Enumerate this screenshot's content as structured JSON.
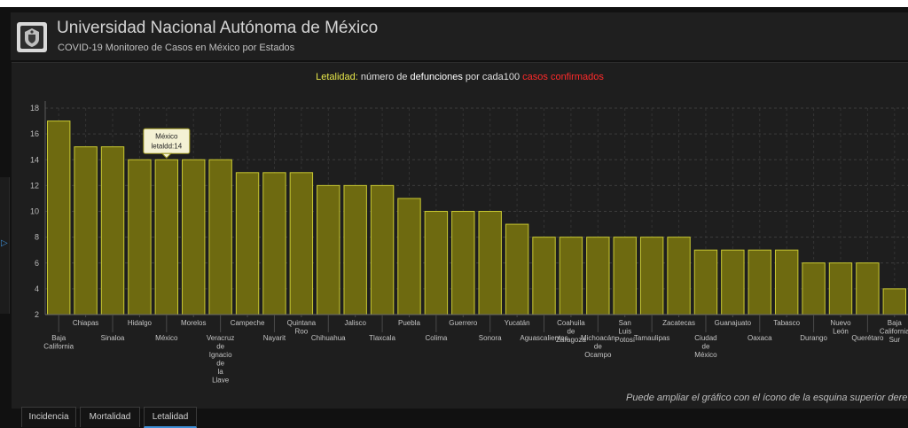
{
  "header": {
    "title": "Universidad Nacional Autónoma de México",
    "subtitle": "COVID-19 Monitoreo de Casos en México por Estados"
  },
  "chart_title": {
    "part1": "Letalidad:",
    "part2": " número de ",
    "part3": "defunciones",
    "part4": " por cada100 ",
    "part5": "casos confirmados"
  },
  "hint": "Puede ampliar el gráfico con el ícono de la esquina superior dere",
  "tooltip": {
    "line1": "México",
    "line2": "letaldd:14"
  },
  "tabs": [
    {
      "label": "Incidencia",
      "active": false
    },
    {
      "label": "Mortalidad",
      "active": false
    },
    {
      "label": "Letalidad",
      "active": true
    }
  ],
  "colors": {
    "bar_fill": "#6e6a10",
    "bar_stroke": "#c8c832",
    "accent": "#3d8fd6"
  },
  "chart_data": {
    "type": "bar",
    "ylim": [
      2,
      18
    ],
    "yticks": [
      2,
      4,
      6,
      8,
      10,
      12,
      14,
      16,
      18
    ],
    "grid": true,
    "categories": [
      "Baja California",
      "Chiapas",
      "Sinaloa",
      "Hidalgo",
      "México",
      "Morelos",
      "Veracruz de Ignacio de la Llave",
      "Campeche",
      "Nayarit",
      "Quintana Roo",
      "Chihuahua",
      "Jalisco",
      "Tlaxcala",
      "Puebla",
      "Colima",
      "Guerrero",
      "Sonora",
      "Yucatán",
      "Aguascalientes",
      "Coahuila de Zaragoza",
      "Michoacán de Ocampo",
      "San Luis Potosí",
      "Tamaulipas",
      "Zacatecas",
      "Ciudad de México",
      "Guanajuato",
      "Oaxaca",
      "Tabasco",
      "Durango",
      "Nuevo León",
      "Querétaro",
      "Baja California Sur"
    ],
    "tick_labels": [
      [
        "Baja",
        "California"
      ],
      [
        "Chiapas"
      ],
      [
        "Sinaloa"
      ],
      [
        "Hidalgo"
      ],
      [
        "México"
      ],
      [
        "Morelos"
      ],
      [
        "Veracruz",
        "de",
        "Ignacio",
        "de",
        "la",
        "Llave"
      ],
      [
        "Campeche"
      ],
      [
        "Nayarit"
      ],
      [
        "Quintana",
        "Roo"
      ],
      [
        "Chihuahua"
      ],
      [
        "Jalisco"
      ],
      [
        "Tlaxcala"
      ],
      [
        "Puebla"
      ],
      [
        "Colima"
      ],
      [
        "Guerrero"
      ],
      [
        "Sonora"
      ],
      [
        "Yucatán"
      ],
      [
        "Aguascalientes"
      ],
      [
        "Coahuila",
        "de",
        "Zaragoza"
      ],
      [
        "Michoacán",
        "de",
        "Ocampo"
      ],
      [
        "San",
        "Luis",
        "Potosí"
      ],
      [
        "Tamaulipas"
      ],
      [
        "Zacatecas"
      ],
      [
        "Ciudad",
        "de",
        "México"
      ],
      [
        "Guanajuato"
      ],
      [
        "Oaxaca"
      ],
      [
        "Tabasco"
      ],
      [
        "Durango"
      ],
      [
        "Nuevo",
        "León"
      ],
      [
        "Querétaro"
      ],
      [
        "Baja",
        "California",
        "Sur"
      ]
    ],
    "values": [
      17,
      15,
      15,
      14,
      14,
      14,
      14,
      13,
      13,
      13,
      12,
      12,
      12,
      11,
      10,
      10,
      10,
      9,
      8,
      8,
      8,
      8,
      8,
      8,
      7,
      7,
      7,
      7,
      6,
      6,
      6,
      4
    ]
  }
}
